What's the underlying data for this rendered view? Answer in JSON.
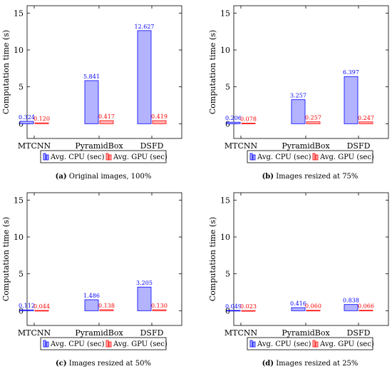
{
  "colors": {
    "cpu_fill": "#b3b3ff",
    "cpu_stroke": "#0000ff",
    "cpu_text": "#0000ff",
    "gpu_fill": "#ffb3b3",
    "gpu_stroke": "#ff0000",
    "gpu_text": "#ff0000",
    "axis": "#000000"
  },
  "chart_data": [
    {
      "type": "bar",
      "caption_label": "(a)",
      "caption_text": "Original images, 100%",
      "ylabel": "Computation time (s)",
      "ylim": [
        -2,
        16
      ],
      "yticks": [
        0,
        5,
        10,
        15
      ],
      "categories": [
        "MTCNN",
        "PyramidBox",
        "DSFD"
      ],
      "series": [
        {
          "name": "Avg. CPU (sec)",
          "values": [
            0.324,
            5.841,
            12.627
          ],
          "labels": [
            "0.324",
            "5.841",
            "12.627"
          ]
        },
        {
          "name": "Avg. GPU (sec)",
          "values": [
            0.12,
            0.417,
            0.419
          ],
          "labels": [
            "0.120",
            "0.417",
            "0.419"
          ]
        }
      ],
      "legend_position": "bottom-center",
      "grid": false
    },
    {
      "type": "bar",
      "caption_label": "(b)",
      "caption_text": "Images resized at 75%",
      "ylabel": "Computation time (s)",
      "ylim": [
        -2,
        16
      ],
      "yticks": [
        0,
        5,
        10,
        15
      ],
      "categories": [
        "MTCNN",
        "PyramidBox",
        "DSFD"
      ],
      "series": [
        {
          "name": "Avg. CPU (sec)",
          "values": [
            0.206,
            3.257,
            6.397
          ],
          "labels": [
            "0.206",
            "3.257",
            "6.397"
          ]
        },
        {
          "name": "Avg. GPU (sec)",
          "values": [
            0.078,
            0.257,
            0.247
          ],
          "labels": [
            "0.078",
            "0.257",
            "0.247"
          ]
        }
      ],
      "legend_position": "bottom-center",
      "grid": false
    },
    {
      "type": "bar",
      "caption_label": "(c)",
      "caption_text": "Images resized at 50%",
      "ylabel": "Computation time (s)",
      "ylim": [
        -2,
        16
      ],
      "yticks": [
        0,
        5,
        10,
        15
      ],
      "categories": [
        "MTCNN",
        "PyramidBox",
        "DSFD"
      ],
      "series": [
        {
          "name": "Avg. CPU (sec)",
          "values": [
            0.112,
            1.486,
            3.205
          ],
          "labels": [
            "0.112",
            "1.486",
            "3.205"
          ]
        },
        {
          "name": "Avg. GPU (sec)",
          "values": [
            0.044,
            0.138,
            0.13
          ],
          "labels": [
            "0.044",
            "0.138",
            "0.130"
          ]
        }
      ],
      "legend_position": "bottom-center",
      "grid": false
    },
    {
      "type": "bar",
      "caption_label": "(d)",
      "caption_text": "Images resized at 25%",
      "ylabel": "Computation time (s)",
      "ylim": [
        -2,
        16
      ],
      "yticks": [
        0,
        5,
        10,
        15
      ],
      "categories": [
        "MTCNN",
        "PyramidBox",
        "DSFD"
      ],
      "series": [
        {
          "name": "Avg. CPU (sec)",
          "values": [
            0.049,
            0.416,
            0.838
          ],
          "labels": [
            "0.049",
            "0.416",
            "0.838"
          ]
        },
        {
          "name": "Avg. GPU (sec)",
          "values": [
            0.023,
            0.06,
            0.066
          ],
          "labels": [
            "0.023",
            "0.060",
            "0.066"
          ]
        }
      ],
      "legend_position": "bottom-center",
      "grid": false
    }
  ]
}
